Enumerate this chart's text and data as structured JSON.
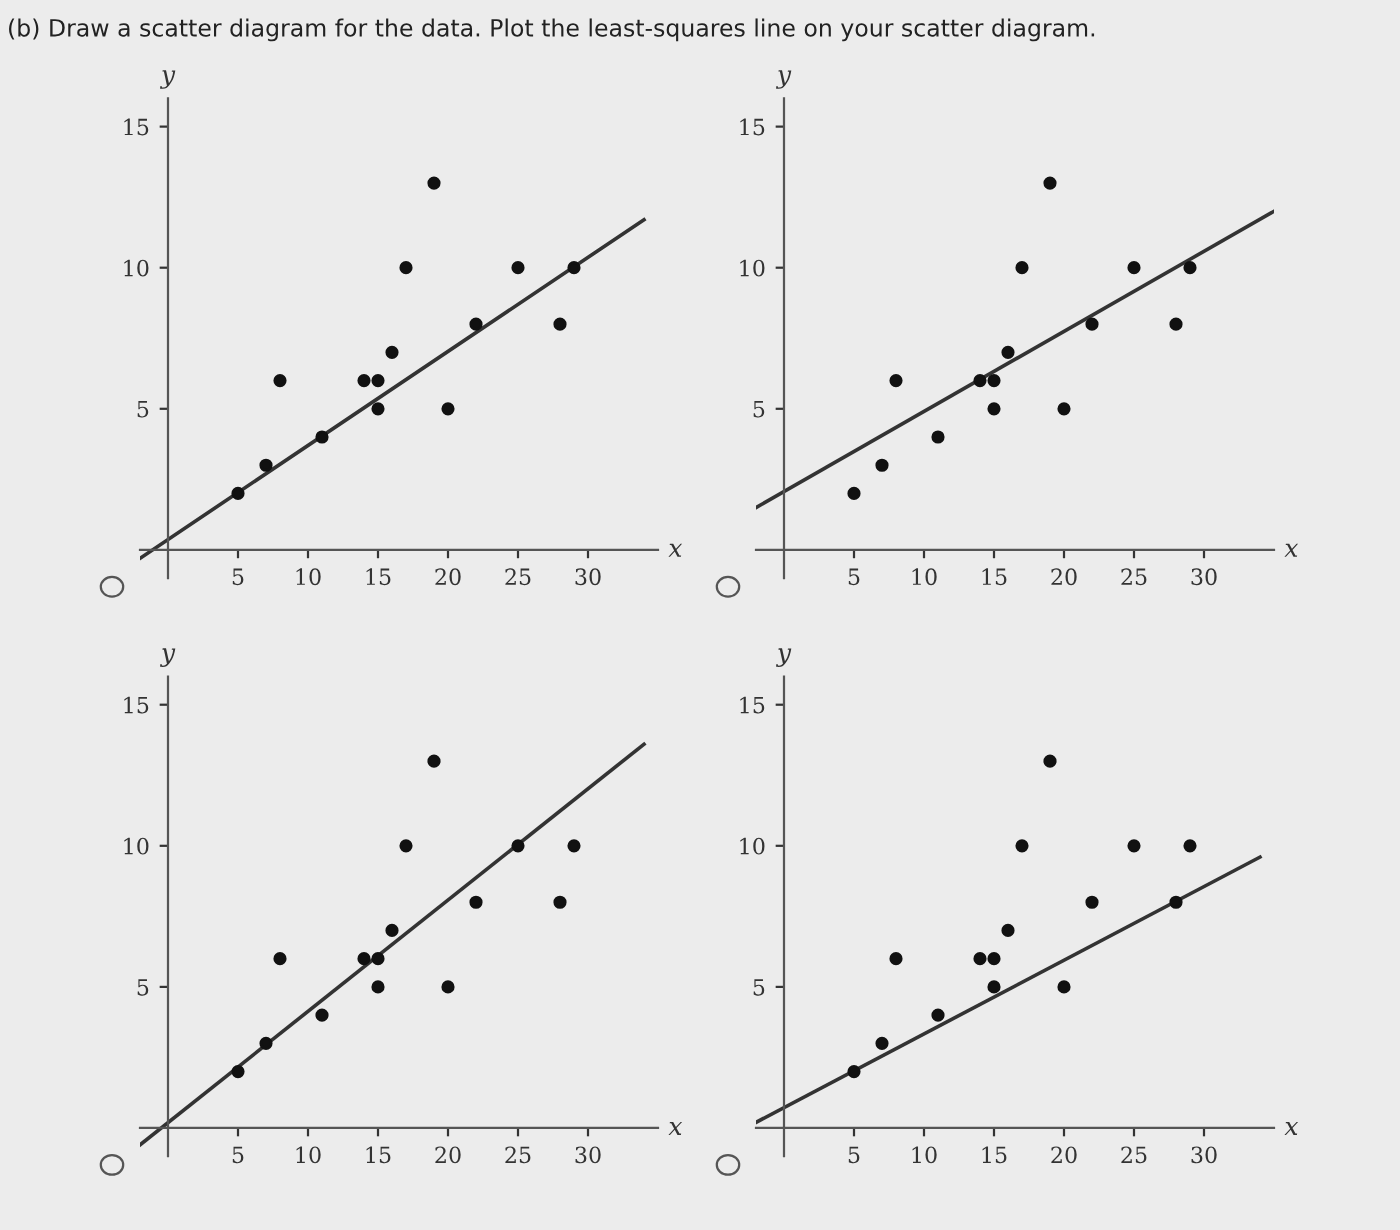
{
  "chart_data": [
    {
      "type": "scatter",
      "title": "(b) Draw a scatter diagram for the data. Plot the least-squares line on your scatter diagram.",
      "xlabel": "x",
      "ylabel": "y",
      "xlim": [
        -2,
        35
      ],
      "ylim": [
        -1,
        16
      ],
      "xticks": [
        5,
        10,
        15,
        20,
        25,
        30
      ],
      "yticks": [
        5,
        10,
        15
      ],
      "grid": false,
      "series": [
        {
          "color": "#111111",
          "marker": "circle",
          "x": [
            5,
            7,
            8,
            11,
            14,
            15,
            15,
            16,
            17,
            19,
            20,
            22,
            25,
            28,
            29
          ],
          "values": [
            2,
            3,
            6,
            4,
            6,
            6,
            5,
            7,
            10,
            13,
            5,
            8,
            10,
            8,
            10
          ]
        },
        {
          "type": "line",
          "color": "#333333",
          "marker": "none",
          "line_style": "solid",
          "x": [
            -2,
            34
          ],
          "values": [
            -0.3,
            11.7
          ]
        }
      ]
    },
    {
      "type": "scatter",
      "xlabel": "x",
      "ylabel": "y",
      "xlim": [
        -2,
        35
      ],
      "ylim": [
        -1,
        16
      ],
      "xticks": [
        5,
        10,
        15,
        20,
        25,
        30
      ],
      "yticks": [
        5,
        10,
        15
      ],
      "grid": false,
      "series": [
        {
          "color": "#111111",
          "marker": "circle",
          "x": [
            5,
            7,
            8,
            11,
            14,
            15,
            15,
            16,
            17,
            19,
            20,
            22,
            25,
            28,
            29
          ],
          "values": [
            2,
            3,
            6,
            4,
            6,
            6,
            5,
            7,
            10,
            13,
            5,
            8,
            10,
            8,
            10
          ]
        },
        {
          "type": "line",
          "color": "#333333",
          "marker": "none",
          "line_style": "solid",
          "x": [
            -2,
            35
          ],
          "values": [
            1.5,
            12
          ]
        }
      ]
    },
    {
      "type": "scatter",
      "xlabel": "x",
      "ylabel": "y",
      "xlim": [
        -2,
        35
      ],
      "ylim": [
        -1,
        16
      ],
      "xticks": [
        5,
        10,
        15,
        20,
        25,
        30
      ],
      "yticks": [
        5,
        10,
        15
      ],
      "grid": false,
      "series": [
        {
          "color": "#111111",
          "marker": "circle",
          "x": [
            5,
            7,
            8,
            11,
            14,
            15,
            15,
            16,
            17,
            19,
            20,
            22,
            25,
            28,
            29
          ],
          "values": [
            2,
            3,
            6,
            4,
            6,
            6,
            5,
            7,
            10,
            13,
            5,
            8,
            10,
            8,
            10
          ]
        },
        {
          "type": "line",
          "color": "#333333",
          "marker": "none",
          "line_style": "solid",
          "x": [
            -2,
            34
          ],
          "values": [
            -0.6,
            13.6
          ]
        }
      ]
    },
    {
      "type": "scatter",
      "xlabel": "x",
      "ylabel": "y",
      "xlim": [
        -2,
        35
      ],
      "ylim": [
        -1,
        16
      ],
      "xticks": [
        5,
        10,
        15,
        20,
        25,
        30
      ],
      "yticks": [
        5,
        10,
        15
      ],
      "grid": false,
      "series": [
        {
          "color": "#111111",
          "marker": "circle",
          "x": [
            5,
            7,
            8,
            11,
            14,
            15,
            15,
            16,
            17,
            19,
            20,
            22,
            25,
            28,
            29
          ],
          "values": [
            2,
            3,
            6,
            4,
            6,
            6,
            5,
            7,
            10,
            13,
            5,
            8,
            10,
            8,
            10
          ]
        },
        {
          "type": "line",
          "color": "#333333",
          "marker": "none",
          "line_style": "solid",
          "x": [
            -2,
            34
          ],
          "values": [
            0.2,
            9.6
          ]
        }
      ]
    }
  ]
}
